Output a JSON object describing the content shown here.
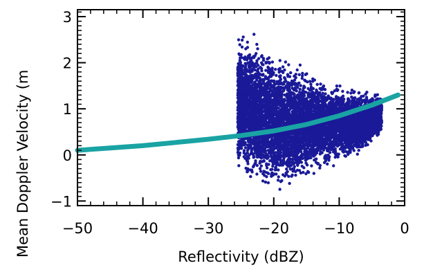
{
  "chart_data": {
    "type": "scatter",
    "title": "",
    "xlabel": "Reflectivity (dBZ)",
    "ylabel": "Mean Doppler Velocity (m",
    "xlim": [
      -50,
      0
    ],
    "ylim": [
      -1.1,
      3.15
    ],
    "xticks": [
      -50,
      -40,
      -30,
      -20,
      -10,
      0
    ],
    "xtick_labels": [
      "−50",
      "−40",
      "−30",
      "−20",
      "−10",
      "0"
    ],
    "yticks": [
      -1,
      0,
      1,
      2,
      3
    ],
    "ytick_labels": [
      "−1",
      "0",
      "1",
      "2",
      "3"
    ],
    "grid": false,
    "series": [
      {
        "kind": "scatter",
        "color": "#1a1a99",
        "x_range": [
          -25.5,
          -3.5
        ],
        "envelope": [
          {
            "x": -25.5,
            "lo": -0.45,
            "hi": 2.7
          },
          {
            "x": -24,
            "lo": -0.8,
            "hi": 2.75
          },
          {
            "x": -22,
            "lo": -0.95,
            "hi": 2.6
          },
          {
            "x": -20,
            "lo": -0.9,
            "hi": 2.35
          },
          {
            "x": -18,
            "lo": -0.8,
            "hi": 2.15
          },
          {
            "x": -16,
            "lo": -0.65,
            "hi": 2.0
          },
          {
            "x": -14,
            "lo": -0.5,
            "hi": 1.85
          },
          {
            "x": -12,
            "lo": -0.35,
            "hi": 1.7
          },
          {
            "x": -10,
            "lo": -0.25,
            "hi": 1.6
          },
          {
            "x": -8,
            "lo": -0.15,
            "hi": 1.55
          },
          {
            "x": -6,
            "lo": 0.0,
            "hi": 1.45
          },
          {
            "x": -3.5,
            "lo": 0.35,
            "hi": 1.4
          }
        ]
      },
      {
        "kind": "line",
        "color": "#1aa3a3",
        "x": [
          -50,
          -45,
          -40,
          -35,
          -30,
          -25,
          -20,
          -15,
          -10,
          -5,
          -1
        ],
        "y": [
          0.1,
          0.15,
          0.2,
          0.27,
          0.34,
          0.42,
          0.52,
          0.66,
          0.85,
          1.08,
          1.3
        ]
      }
    ]
  }
}
